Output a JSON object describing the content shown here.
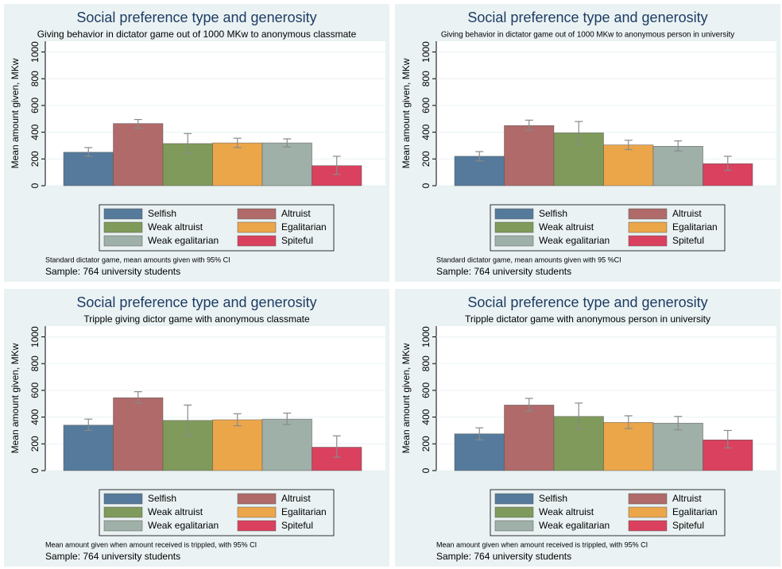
{
  "chart_data": [
    {
      "type": "bar",
      "title": "Social preference type and generosity",
      "subtitle": "Giving behavior in dictator game out of 1000 MKw to anonymous classmate",
      "y_label": "Mean amount given, MKw",
      "ylim": [
        0,
        1080
      ],
      "yticks": [
        0,
        200,
        400,
        600,
        800,
        1000
      ],
      "grid": true,
      "series": [
        {
          "name": "Selfish",
          "color": "#557a9b",
          "values": [
            250
          ],
          "ci_low": [
            220
          ],
          "ci_high": [
            285
          ]
        },
        {
          "name": "Altruist",
          "color": "#b06a6a",
          "values": [
            465
          ],
          "ci_low": [
            430
          ],
          "ci_high": [
            495
          ]
        },
        {
          "name": "Weak altruist",
          "color": "#7f9a5a",
          "values": [
            315
          ],
          "ci_low": [
            240
          ],
          "ci_high": [
            390
          ]
        },
        {
          "name": "Egalitarian",
          "color": "#eba64a",
          "values": [
            320
          ],
          "ci_low": [
            285
          ],
          "ci_high": [
            355
          ]
        },
        {
          "name": "Weak egalitarian",
          "color": "#9fb0a8",
          "values": [
            320
          ],
          "ci_low": [
            290
          ],
          "ci_high": [
            350
          ]
        },
        {
          "name": "Spiteful",
          "color": "#d9415e",
          "values": [
            150
          ],
          "ci_low": [
            85
          ],
          "ci_high": [
            220
          ]
        }
      ],
      "note": "Standard dictator game, mean amounts given with 95% CI",
      "sample": "Sample: 764 university students"
    },
    {
      "type": "bar",
      "title": "Social preference type and generosity",
      "subtitle": "Giving behavior in dictator game out of 1000 MKw to anonymous person in university",
      "y_label": "Mean amount given, MKw",
      "ylim": [
        0,
        1080
      ],
      "yticks": [
        0,
        200,
        400,
        600,
        800,
        1000
      ],
      "grid": true,
      "series": [
        {
          "name": "Selfish",
          "color": "#557a9b",
          "values": [
            220
          ],
          "ci_low": [
            185
          ],
          "ci_high": [
            255
          ]
        },
        {
          "name": "Altruist",
          "color": "#b06a6a",
          "values": [
            450
          ],
          "ci_low": [
            415
          ],
          "ci_high": [
            490
          ]
        },
        {
          "name": "Weak altruist",
          "color": "#7f9a5a",
          "values": [
            395
          ],
          "ci_low": [
            310
          ],
          "ci_high": [
            480
          ]
        },
        {
          "name": "Egalitarian",
          "color": "#eba64a",
          "values": [
            305
          ],
          "ci_low": [
            270
          ],
          "ci_high": [
            340
          ]
        },
        {
          "name": "Weak egalitarian",
          "color": "#9fb0a8",
          "values": [
            295
          ],
          "ci_low": [
            260
          ],
          "ci_high": [
            335
          ]
        },
        {
          "name": "Spiteful",
          "color": "#d9415e",
          "values": [
            165
          ],
          "ci_low": [
            115
          ],
          "ci_high": [
            220
          ]
        }
      ],
      "note": "Standard dictator game, mean amounts given with 95 %CI",
      "sample": "Sample: 764 university students"
    },
    {
      "type": "bar",
      "title": "Social preference type and generosity",
      "subtitle": "Tripple giving dictor game with anonymous classmate",
      "y_label": "Mean amount given, MKw",
      "ylim": [
        0,
        1080
      ],
      "yticks": [
        0,
        200,
        400,
        600,
        800,
        1000
      ],
      "grid": true,
      "series": [
        {
          "name": "Selfish",
          "color": "#557a9b",
          "values": [
            340
          ],
          "ci_low": [
            300
          ],
          "ci_high": [
            385
          ]
        },
        {
          "name": "Altruist",
          "color": "#b06a6a",
          "values": [
            545
          ],
          "ci_low": [
            505
          ],
          "ci_high": [
            590
          ]
        },
        {
          "name": "Weak altruist",
          "color": "#7f9a5a",
          "values": [
            375
          ],
          "ci_low": [
            260
          ],
          "ci_high": [
            490
          ]
        },
        {
          "name": "Egalitarian",
          "color": "#eba64a",
          "values": [
            380
          ],
          "ci_low": [
            335
          ],
          "ci_high": [
            425
          ]
        },
        {
          "name": "Weak egalitarian",
          "color": "#9fb0a8",
          "values": [
            385
          ],
          "ci_low": [
            345
          ],
          "ci_high": [
            430
          ]
        },
        {
          "name": "Spiteful",
          "color": "#d9415e",
          "values": [
            175
          ],
          "ci_low": [
            100
          ],
          "ci_high": [
            260
          ]
        }
      ],
      "note": "Mean amount given when amount received is trippled, with 95% CI",
      "sample": "Sample: 764 university students"
    },
    {
      "type": "bar",
      "title": "Social preference type and generosity",
      "subtitle": "Tripple dictator game with anonymous person in university",
      "y_label": "Mean amount given, MKw",
      "ylim": [
        0,
        1080
      ],
      "yticks": [
        0,
        200,
        400,
        600,
        800,
        1000
      ],
      "grid": true,
      "series": [
        {
          "name": "Selfish",
          "color": "#557a9b",
          "values": [
            275
          ],
          "ci_low": [
            230
          ],
          "ci_high": [
            320
          ]
        },
        {
          "name": "Altruist",
          "color": "#b06a6a",
          "values": [
            490
          ],
          "ci_low": [
            445
          ],
          "ci_high": [
            540
          ]
        },
        {
          "name": "Weak altruist",
          "color": "#7f9a5a",
          "values": [
            405
          ],
          "ci_low": [
            310
          ],
          "ci_high": [
            505
          ]
        },
        {
          "name": "Egalitarian",
          "color": "#eba64a",
          "values": [
            360
          ],
          "ci_low": [
            315
          ],
          "ci_high": [
            410
          ]
        },
        {
          "name": "Weak egalitarian",
          "color": "#9fb0a8",
          "values": [
            355
          ],
          "ci_low": [
            305
          ],
          "ci_high": [
            405
          ]
        },
        {
          "name": "Spiteful",
          "color": "#d9415e",
          "values": [
            230
          ],
          "ci_low": [
            170
          ],
          "ci_high": [
            300
          ]
        }
      ],
      "note": "Mean amount given when amount received is trippled, with 95% CI",
      "sample": "Sample: 764 university students"
    }
  ]
}
